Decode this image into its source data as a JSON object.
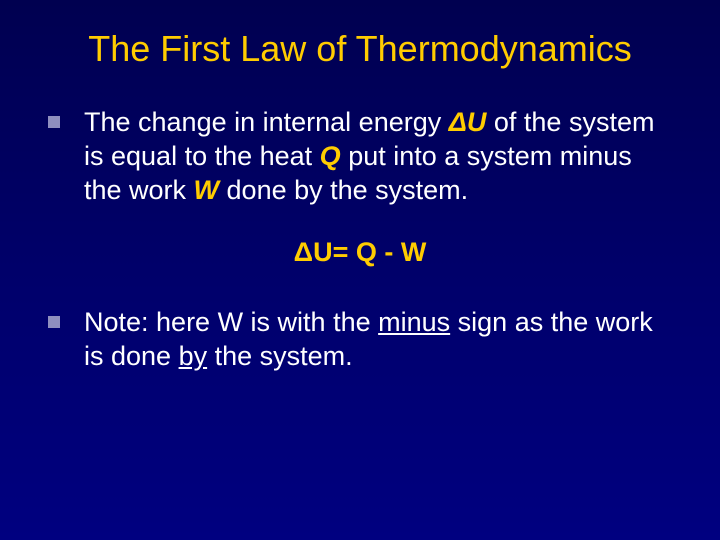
{
  "title": {
    "text": "The First Law of Thermodynamics",
    "color": "#ffcc00",
    "fontsize": 36
  },
  "body_fontsize": 27,
  "highlight_color": "#ffcc00",
  "bullet1": {
    "seg1": "The change in internal energy ",
    "du": "ΔU",
    "seg2": " of the system is equal to the heat ",
    "q": "Q",
    "seg3": " put into a system minus the work ",
    "w": "W",
    "seg4": " done by the system."
  },
  "equation": {
    "text": "ΔU= Q - W",
    "color": "#ffcc00",
    "fontsize": 27
  },
  "bullet2": {
    "seg1": "Note: here W is with the ",
    "u1": "minus",
    "seg2": " sign as the work is done ",
    "u2": "by",
    "seg3": " the system."
  }
}
